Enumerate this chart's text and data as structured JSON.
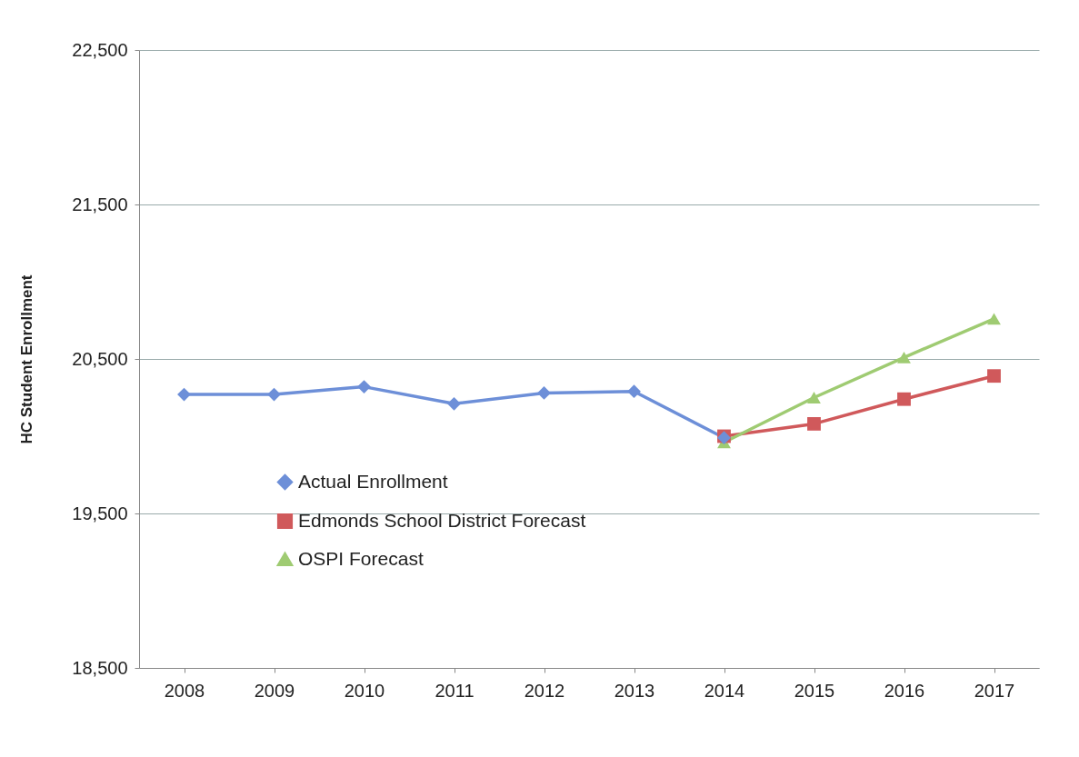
{
  "chart_data": {
    "type": "line",
    "ylabel": "HC Student Enrollment",
    "categories": [
      "2008",
      "2009",
      "2010",
      "2011",
      "2012",
      "2013",
      "2014",
      "2015",
      "2016",
      "2017"
    ],
    "series": [
      {
        "name": "Actual Enrollment",
        "color": "#6d8fd8",
        "marker": "diamond",
        "values": [
          20270,
          20270,
          20320,
          20210,
          20280,
          20290,
          19990,
          null,
          null,
          null
        ]
      },
      {
        "name": "Edmonds School District Forecast",
        "color": "#d0595b",
        "marker": "square",
        "values": [
          null,
          null,
          null,
          null,
          null,
          null,
          20000,
          20080,
          20240,
          20390
        ]
      },
      {
        "name": "OSPI Forecast",
        "color": "#9fcb72",
        "marker": "triangle",
        "values": [
          null,
          null,
          null,
          null,
          null,
          null,
          19960,
          20250,
          20510,
          20760
        ]
      }
    ],
    "ylim": [
      18500,
      22500
    ],
    "yticks": [
      {
        "value": 18500,
        "label": "18,500"
      },
      {
        "value": 19500,
        "label": "19,500"
      },
      {
        "value": 20500,
        "label": "20,500"
      },
      {
        "value": 21500,
        "label": "21,500"
      },
      {
        "value": 22500,
        "label": "22,500"
      }
    ],
    "grid": "y",
    "legend": "bottom left"
  }
}
